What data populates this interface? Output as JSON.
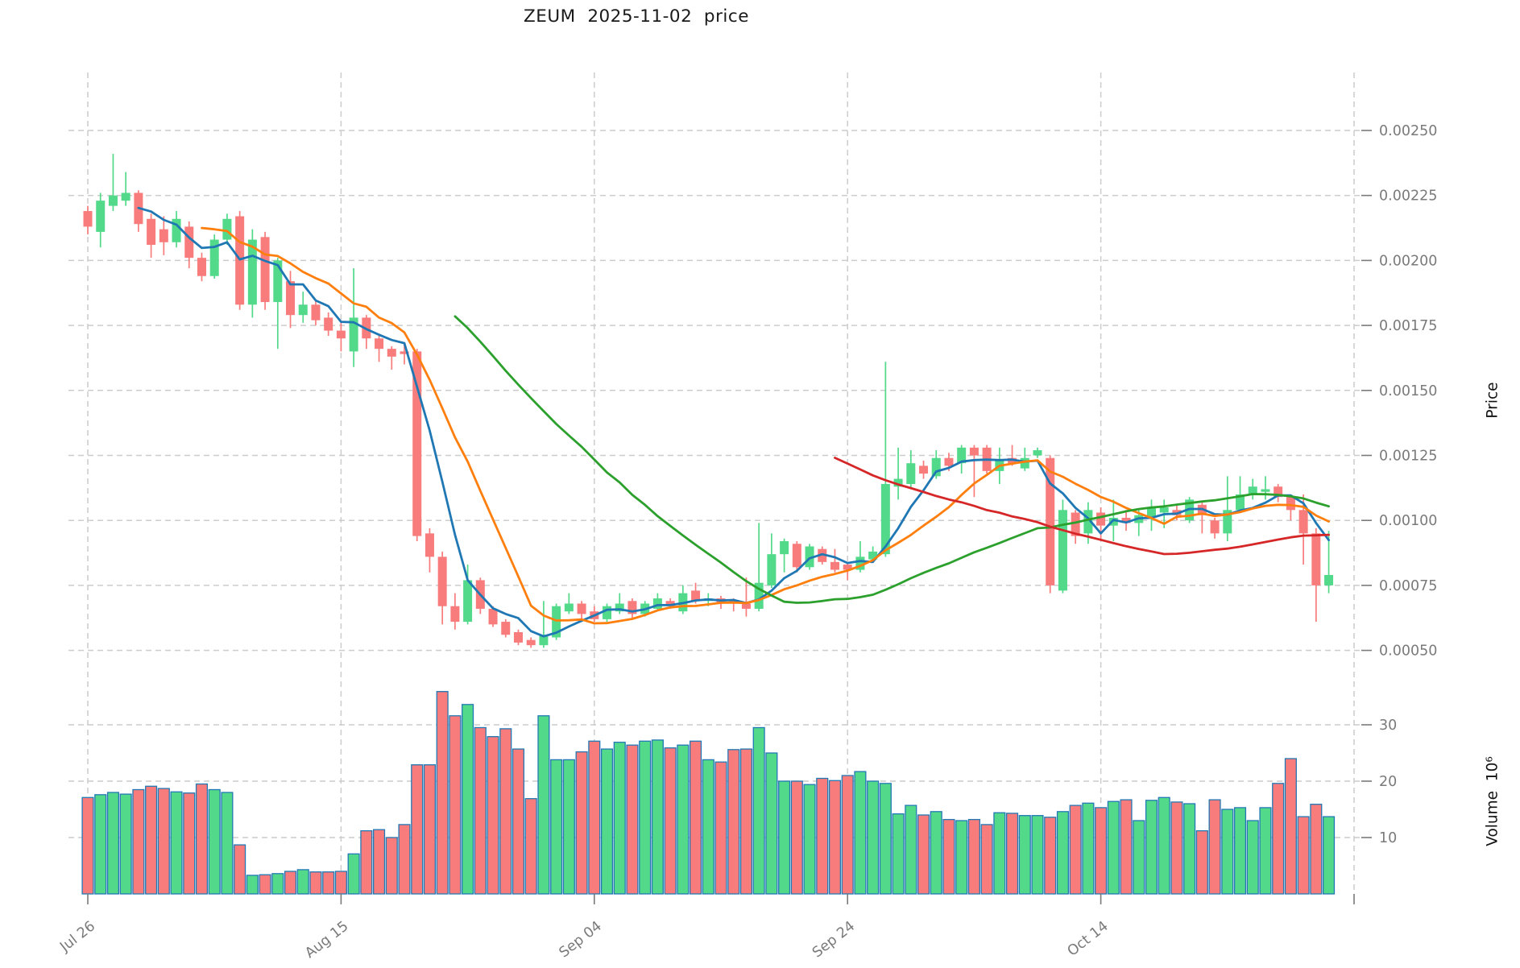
{
  "title": "ZEUM  2025-11-02  price",
  "chart_data": {
    "type": "candlestick",
    "symbol": "ZEUM",
    "as_of_date": "2025-11-02",
    "panels": [
      "price",
      "volume"
    ],
    "grid": true,
    "x_ticks": [
      {
        "i": 0,
        "label": "Jul 26"
      },
      {
        "i": 20,
        "label": "Aug 15"
      },
      {
        "i": 40,
        "label": "Sep 04"
      },
      {
        "i": 60,
        "label": "Sep 24"
      },
      {
        "i": 80,
        "label": "Oct 14"
      },
      {
        "i": 100,
        "label": ""
      }
    ],
    "price_axis": {
      "label": "Price",
      "side": "right",
      "ticks": [
        0.0005,
        0.00075,
        0.001,
        0.00125,
        0.0015,
        0.00175,
        0.002,
        0.00225,
        0.0025
      ],
      "min": 0.0004,
      "max": 0.00272
    },
    "volume_axis": {
      "label": "Volume  10⁶",
      "side": "right",
      "unit_millions": true,
      "ticks": [
        10,
        20,
        30
      ],
      "min": 0,
      "max": 36.5
    },
    "moving_averages": [
      {
        "window": 5,
        "color": "#1f77b4"
      },
      {
        "window": 10,
        "color": "#ff7f0e"
      },
      {
        "window": 30,
        "color": "#2ca02c"
      },
      {
        "window": 60,
        "color": "#d62728"
      }
    ],
    "colors": {
      "up": "#52d98a",
      "down": "#f87c7c",
      "volume_edge": "#2278b5",
      "grid": "#cccccc",
      "tick_text": "#7a7a7a",
      "title_text": "#1a1a1a"
    },
    "candles": {
      "open": [
        0.00219,
        0.00211,
        0.00221,
        0.00223,
        0.00226,
        0.00216,
        0.00212,
        0.00207,
        0.00213,
        0.00201,
        0.00194,
        0.00208,
        0.00217,
        0.00183,
        0.00209,
        0.00184,
        0.00192,
        0.00179,
        0.00183,
        0.00178,
        0.00173,
        0.00165,
        0.00178,
        0.0017,
        0.00166,
        0.00165,
        0.00165,
        0.00095,
        0.00086,
        0.00067,
        0.00061,
        0.00077,
        0.00066,
        0.00061,
        0.00057,
        0.00054,
        0.00052,
        0.00055,
        0.00065,
        0.00068,
        0.00065,
        0.00062,
        0.00065,
        0.00069,
        0.00064,
        0.00066,
        0.00069,
        0.00065,
        0.00073,
        0.00069,
        0.0007,
        0.00069,
        0.00068,
        0.00066,
        0.00075,
        0.00087,
        0.00091,
        0.00082,
        0.00089,
        0.00084,
        0.00083,
        0.00081,
        0.00085,
        0.00087,
        0.00113,
        0.00114,
        0.00121,
        0.00117,
        0.00124,
        0.00122,
        0.00128,
        0.00128,
        0.00119,
        0.00124,
        0.0012,
        0.00125,
        0.00124,
        0.00073,
        0.00103,
        0.00095,
        0.00103,
        0.00098,
        0.00101,
        0.00099,
        0.00101,
        0.00103,
        0.00104,
        0.001,
        0.00106,
        0.001,
        0.00095,
        0.00104,
        0.0011,
        0.00111,
        0.00113,
        0.00109,
        0.00104,
        0.00095,
        0.00075
      ],
      "high": [
        0.00221,
        0.00226,
        0.00241,
        0.00234,
        0.00227,
        0.00218,
        0.00217,
        0.00219,
        0.00215,
        0.00203,
        0.0021,
        0.00218,
        0.00219,
        0.00212,
        0.00211,
        0.00201,
        0.00196,
        0.00188,
        0.00185,
        0.0018,
        0.00176,
        0.00197,
        0.00179,
        0.00171,
        0.00167,
        0.00168,
        0.00166,
        0.00097,
        0.00088,
        0.00072,
        0.00083,
        0.00078,
        0.00067,
        0.00062,
        0.00058,
        0.00055,
        0.00069,
        0.00068,
        0.00072,
        0.00069,
        0.00067,
        0.00068,
        0.00072,
        0.0007,
        0.00069,
        0.00072,
        0.0007,
        0.00075,
        0.00076,
        0.00072,
        0.00071,
        0.0007,
        0.00078,
        0.00099,
        0.00095,
        0.00093,
        0.00092,
        0.00091,
        0.0009,
        0.00089,
        0.00084,
        0.00092,
        0.0009,
        0.00161,
        0.00128,
        0.00127,
        0.00123,
        0.00127,
        0.00126,
        0.00129,
        0.00129,
        0.00129,
        0.00128,
        0.00129,
        0.00128,
        0.00128,
        0.00125,
        0.00108,
        0.00104,
        0.00107,
        0.00105,
        0.00108,
        0.00104,
        0.00104,
        0.00108,
        0.00108,
        0.00106,
        0.00109,
        0.00107,
        0.00101,
        0.00117,
        0.00117,
        0.00116,
        0.00117,
        0.00114,
        0.0011,
        0.0011,
        0.00097,
        0.00096
      ],
      "low": [
        0.0021,
        0.00205,
        0.00219,
        0.00221,
        0.00211,
        0.00201,
        0.00202,
        0.00205,
        0.00197,
        0.00192,
        0.00193,
        0.00206,
        0.00181,
        0.00178,
        0.00181,
        0.00166,
        0.00174,
        0.00176,
        0.00175,
        0.00171,
        0.00165,
        0.00159,
        0.00166,
        0.00161,
        0.00158,
        0.0016,
        0.00092,
        0.0008,
        0.0006,
        0.00058,
        0.0006,
        0.00064,
        0.00059,
        0.00055,
        0.00052,
        0.00051,
        0.00051,
        0.00054,
        0.00064,
        0.00062,
        0.00061,
        0.00061,
        0.00064,
        0.00062,
        0.00063,
        0.00065,
        0.00066,
        0.00064,
        0.00068,
        0.00067,
        0.00066,
        0.00065,
        0.00063,
        0.00065,
        0.00074,
        0.0008,
        0.0008,
        0.00081,
        0.00083,
        0.0008,
        0.00077,
        0.0008,
        0.00084,
        0.00086,
        0.00108,
        0.00112,
        0.00116,
        0.00116,
        0.00119,
        0.00118,
        0.00109,
        0.00118,
        0.00114,
        0.00121,
        0.00119,
        0.00124,
        0.00072,
        0.00072,
        0.00091,
        0.00091,
        0.00092,
        0.00092,
        0.00096,
        0.00094,
        0.00096,
        0.00097,
        0.001,
        0.00099,
        0.00095,
        0.00093,
        0.00092,
        0.00103,
        0.00108,
        0.00108,
        0.00107,
        0.001,
        0.00083,
        0.00061,
        0.00072
      ],
      "close": [
        0.00213,
        0.00223,
        0.00225,
        0.00226,
        0.00214,
        0.00206,
        0.00207,
        0.00216,
        0.00201,
        0.00194,
        0.00208,
        0.00216,
        0.00183,
        0.00208,
        0.00184,
        0.002,
        0.00179,
        0.00183,
        0.00177,
        0.00173,
        0.0017,
        0.00178,
        0.0017,
        0.00166,
        0.00163,
        0.00164,
        0.00094,
        0.00086,
        0.00067,
        0.00061,
        0.00077,
        0.00066,
        0.0006,
        0.00056,
        0.00053,
        0.00052,
        0.00056,
        0.00067,
        0.00068,
        0.00064,
        0.00062,
        0.00067,
        0.00068,
        0.00064,
        0.00068,
        0.0007,
        0.00067,
        0.00072,
        0.00069,
        0.0007,
        0.00068,
        0.00068,
        0.00066,
        0.00076,
        0.00087,
        0.00092,
        0.00082,
        0.0009,
        0.00084,
        0.00081,
        0.00081,
        0.00086,
        0.00088,
        0.00114,
        0.00116,
        0.00122,
        0.00118,
        0.00124,
        0.00121,
        0.00128,
        0.00125,
        0.00119,
        0.00123,
        0.00122,
        0.00124,
        0.00127,
        0.00075,
        0.00104,
        0.00094,
        0.00104,
        0.00098,
        0.00101,
        0.00099,
        0.00102,
        0.00105,
        0.00105,
        0.00102,
        0.00108,
        0.00102,
        0.00095,
        0.00104,
        0.0011,
        0.00113,
        0.00112,
        0.00109,
        0.00104,
        0.00095,
        0.00075,
        0.00079
      ],
      "volume_millions": [
        17.1,
        17.6,
        18.0,
        17.7,
        18.5,
        19.1,
        18.7,
        18.1,
        17.9,
        19.5,
        18.5,
        18.0,
        8.7,
        3.3,
        3.4,
        3.6,
        4.0,
        4.3,
        3.9,
        3.9,
        4.0,
        7.1,
        11.2,
        11.4,
        10.0,
        12.3,
        22.9,
        22.9,
        35.9,
        31.6,
        33.6,
        29.5,
        27.9,
        29.3,
        25.7,
        16.9,
        31.6,
        23.8,
        23.8,
        25.2,
        27.1,
        25.7,
        26.9,
        26.4,
        27.1,
        27.3,
        25.9,
        26.4,
        27.1,
        23.8,
        23.4,
        25.6,
        25.7,
        29.5,
        25.0,
        20.0,
        20.0,
        19.4,
        20.5,
        20.1,
        21.0,
        21.7,
        20.0,
        19.6,
        14.2,
        15.7,
        14.0,
        14.6,
        13.2,
        13.0,
        13.2,
        12.3,
        14.4,
        14.3,
        13.9,
        13.9,
        13.6,
        14.6,
        15.7,
        16.1,
        15.3,
        16.4,
        16.7,
        13.0,
        16.6,
        17.1,
        16.3,
        16.0,
        11.2,
        16.7,
        15.0,
        15.3,
        13.0,
        15.3,
        19.6,
        24.0,
        13.7,
        15.9,
        13.7
      ]
    }
  }
}
